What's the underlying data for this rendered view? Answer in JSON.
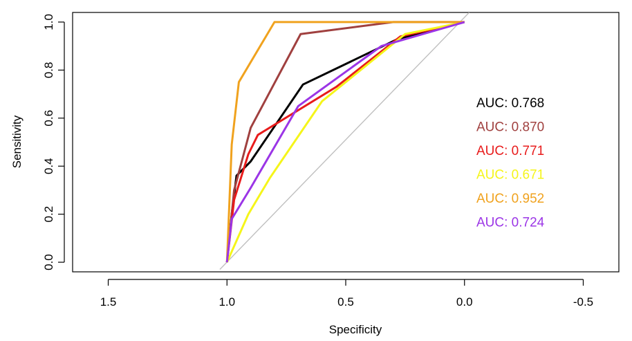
{
  "chart_data": {
    "type": "line",
    "title": "",
    "xlabel": "Specificity",
    "ylabel": "Sensitivity",
    "xlim": [
      1.65,
      -0.65
    ],
    "ylim": [
      -0.04,
      1.04
    ],
    "x_reversed": true,
    "x_ticks": [
      1.5,
      1.0,
      0.5,
      0.0,
      -0.5
    ],
    "x_tick_labels": [
      "1.5",
      "1.0",
      "0.5",
      "0.0",
      "-0.5"
    ],
    "y_ticks": [
      0.0,
      0.2,
      0.4,
      0.6,
      0.8,
      1.0
    ],
    "y_tick_labels": [
      "0.0",
      "0.2",
      "0.4",
      "0.6",
      "0.8",
      "1.0"
    ],
    "reference_line": {
      "x": [
        1.03,
        -0.02
      ],
      "y": [
        -0.03,
        1.04
      ],
      "color": "#bfbfbf"
    },
    "grid": false,
    "series": [
      {
        "color": "#000000",
        "auc_label": "AUC: 0.768",
        "x": [
          1.0,
          0.98,
          0.96,
          0.9,
          0.68,
          0.28,
          0.0
        ],
        "y": [
          0.0,
          0.2,
          0.36,
          0.42,
          0.74,
          0.93,
          1.0
        ]
      },
      {
        "color": "#a0403f",
        "auc_label": "AUC: 0.870",
        "x": [
          1.0,
          0.97,
          0.9,
          0.69,
          0.3,
          0.0
        ],
        "y": [
          0.0,
          0.3,
          0.56,
          0.95,
          1.0,
          1.0
        ]
      },
      {
        "color": "#e81b1b",
        "auc_label": "AUC: 0.771",
        "x": [
          1.0,
          0.97,
          0.91,
          0.87,
          0.54,
          0.27,
          0.0
        ],
        "y": [
          0.0,
          0.26,
          0.45,
          0.53,
          0.73,
          0.94,
          1.0
        ]
      },
      {
        "color": "#f5f51a",
        "auc_label": "AUC: 0.671",
        "x": [
          1.0,
          0.91,
          0.82,
          0.6,
          0.25,
          0.0
        ],
        "y": [
          0.0,
          0.2,
          0.35,
          0.67,
          0.95,
          1.0
        ]
      },
      {
        "color": "#f0a21e",
        "auc_label": "AUC: 0.952",
        "x": [
          1.0,
          0.98,
          0.95,
          0.8,
          0.0
        ],
        "y": [
          0.0,
          0.49,
          0.75,
          1.0,
          1.0
        ]
      },
      {
        "color": "#9b35e6",
        "auc_label": "AUC: 0.724",
        "x": [
          1.0,
          0.98,
          0.9,
          0.7,
          0.35,
          0.0
        ],
        "y": [
          0.0,
          0.18,
          0.31,
          0.65,
          0.9,
          1.0
        ]
      }
    ],
    "legend_placement": "right-middle"
  }
}
